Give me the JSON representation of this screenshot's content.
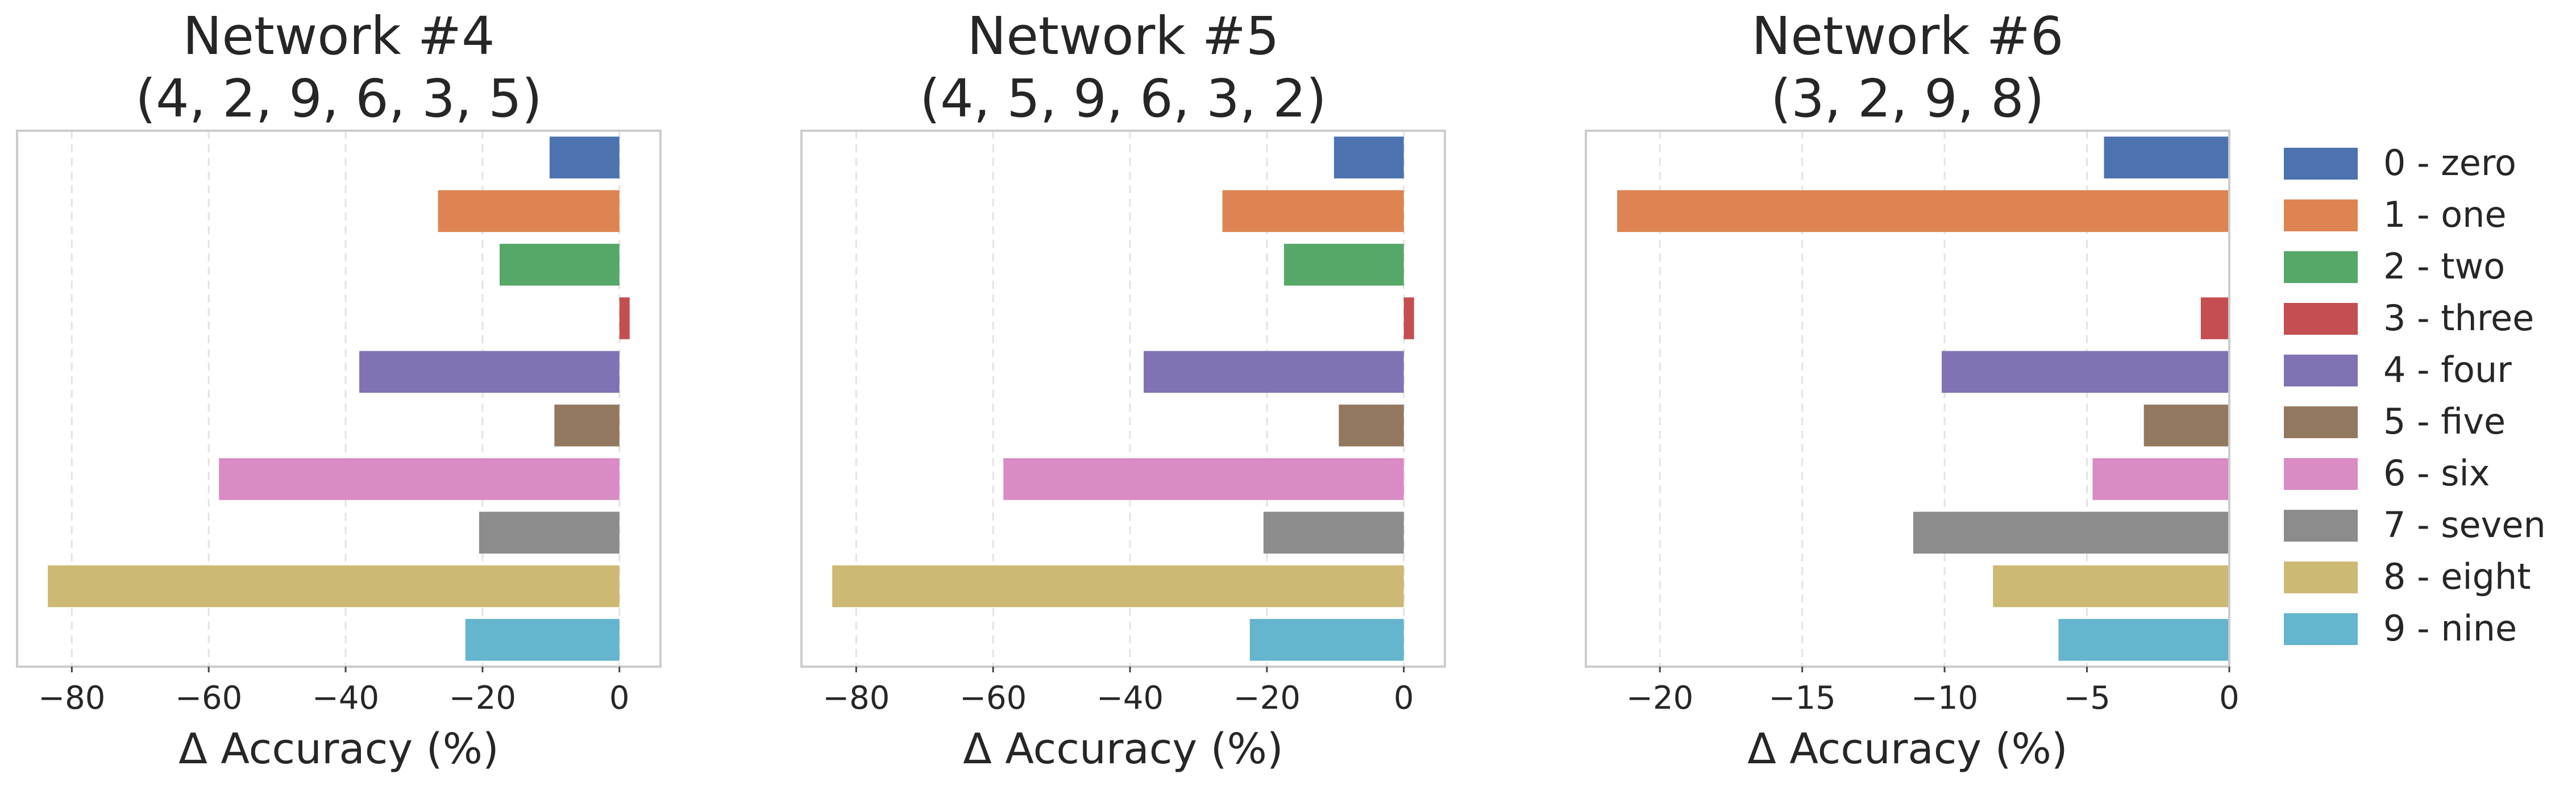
{
  "chart_data": [
    {
      "type": "bar",
      "orientation": "horizontal",
      "title_line1": "Network #4",
      "title_line2": "(4, 2, 9, 6, 3, 5)",
      "xlabel": "Δ Accuracy (%)",
      "xlim": [
        -88,
        6
      ],
      "xticks": [
        -80,
        -60,
        -40,
        -20,
        0
      ],
      "xtick_labels": [
        "−80",
        "−60",
        "−40",
        "−20",
        "0"
      ],
      "grid": true,
      "categories": [
        "0 - zero",
        "1 - one",
        "2 - two",
        "3 - three",
        "4 - four",
        "5 - five",
        "6 - six",
        "7 - seven",
        "8 - eight",
        "9 - nine"
      ],
      "values": [
        -10.2,
        -26.5,
        -17.5,
        1.5,
        -38.0,
        -9.5,
        -58.5,
        -20.5,
        -83.5,
        -22.5
      ]
    },
    {
      "type": "bar",
      "orientation": "horizontal",
      "title_line1": "Network #5",
      "title_line2": "(4, 5, 9, 6, 3, 2)",
      "xlabel": "Δ Accuracy (%)",
      "xlim": [
        -88,
        6
      ],
      "xticks": [
        -80,
        -60,
        -40,
        -20,
        0
      ],
      "xtick_labels": [
        "−80",
        "−60",
        "−40",
        "−20",
        "0"
      ],
      "grid": true,
      "categories": [
        "0 - zero",
        "1 - one",
        "2 - two",
        "3 - three",
        "4 - four",
        "5 - five",
        "6 - six",
        "7 - seven",
        "8 - eight",
        "9 - nine"
      ],
      "values": [
        -10.2,
        -26.5,
        -17.5,
        1.5,
        -38.0,
        -9.5,
        -58.5,
        -20.5,
        -83.5,
        -22.5
      ]
    },
    {
      "type": "bar",
      "orientation": "horizontal",
      "title_line1": "Network #6",
      "title_line2": "(3, 2, 9, 8)",
      "xlabel": "Δ Accuracy (%)",
      "xlim": [
        -22.6,
        0
      ],
      "xticks": [
        -20,
        -15,
        -10,
        -5,
        0
      ],
      "xtick_labels": [
        "−20",
        "−15",
        "−10",
        "−5",
        "0"
      ],
      "grid": true,
      "categories": [
        "0 - zero",
        "1 - one",
        "2 - two",
        "3 - three",
        "4 - four",
        "5 - five",
        "6 - six",
        "7 - seven",
        "8 - eight",
        "9 - nine"
      ],
      "values": [
        -4.4,
        -21.5,
        0,
        -1.0,
        -10.1,
        -3.0,
        -4.8,
        -11.1,
        -8.3,
        -6.0
      ]
    }
  ],
  "legend": {
    "placement": "right",
    "entries": [
      "0 - zero",
      "1 - one",
      "2 - two",
      "3 - three",
      "4 - four",
      "5 - five",
      "6 - six",
      "7 - seven",
      "8 - eight",
      "9 - nine"
    ]
  },
  "colors": [
    "#4c72b0",
    "#dd8452",
    "#55a868",
    "#c44e52",
    "#8172b3",
    "#937860",
    "#da8bc3",
    "#8c8c8c",
    "#ccb974",
    "#64b5cd"
  ]
}
